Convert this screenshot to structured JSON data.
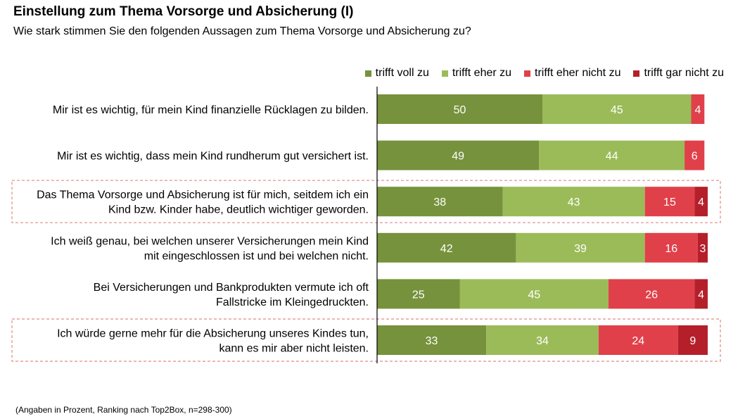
{
  "title": "Einstellung zum Thema Vorsorge und Absicherung (I)",
  "subtitle": "Wie stark stimmen Sie den folgenden Aussagen zum Thema Vorsorge und Absicherung zu?",
  "footnote": "(Angaben in Prozent, Ranking nach Top2Box, n=298-300)",
  "chart_data": {
    "type": "bar",
    "orientation": "horizontal",
    "stacked": true,
    "categories": [
      [
        "Mir ist es wichtig, für mein Kind finanzielle Rücklagen zu bilden."
      ],
      [
        "Mir ist es wichtig, dass mein Kind rundherum gut versichert ist."
      ],
      [
        "Das Thema Vorsorge und Absicherung ist für mich, seitdem ich ein",
        "Kind bzw. Kinder habe, deutlich wichtiger geworden."
      ],
      [
        "Ich weiß genau, bei welchen unserer Versicherungen mein Kind",
        "mit eingeschlossen ist und bei welchen nicht."
      ],
      [
        "Bei Versicherungen und Bankprodukten vermute ich oft",
        "Fallstricke im Kleingedruckten."
      ],
      [
        "Ich würde gerne mehr für die Absicherung unseres Kindes tun,",
        "kann es mir aber nicht leisten."
      ]
    ],
    "highlighted": [
      false,
      false,
      true,
      false,
      false,
      true
    ],
    "series": [
      {
        "name": "trifft voll zu",
        "color": "#76923c",
        "values": [
          50,
          49,
          38,
          42,
          25,
          33
        ]
      },
      {
        "name": "trifft eher zu",
        "color": "#9bbb59",
        "values": [
          45,
          44,
          43,
          39,
          45,
          34
        ]
      },
      {
        "name": "trifft eher nicht zu",
        "color": "#e0404a",
        "values": [
          4,
          6,
          15,
          16,
          26,
          24
        ]
      },
      {
        "name": "trifft gar nicht zu",
        "color": "#b51f2a",
        "values": [
          null,
          null,
          4,
          3,
          4,
          9
        ]
      }
    ],
    "xlim": [
      0,
      100
    ],
    "legend": "top-right",
    "grid": false
  }
}
